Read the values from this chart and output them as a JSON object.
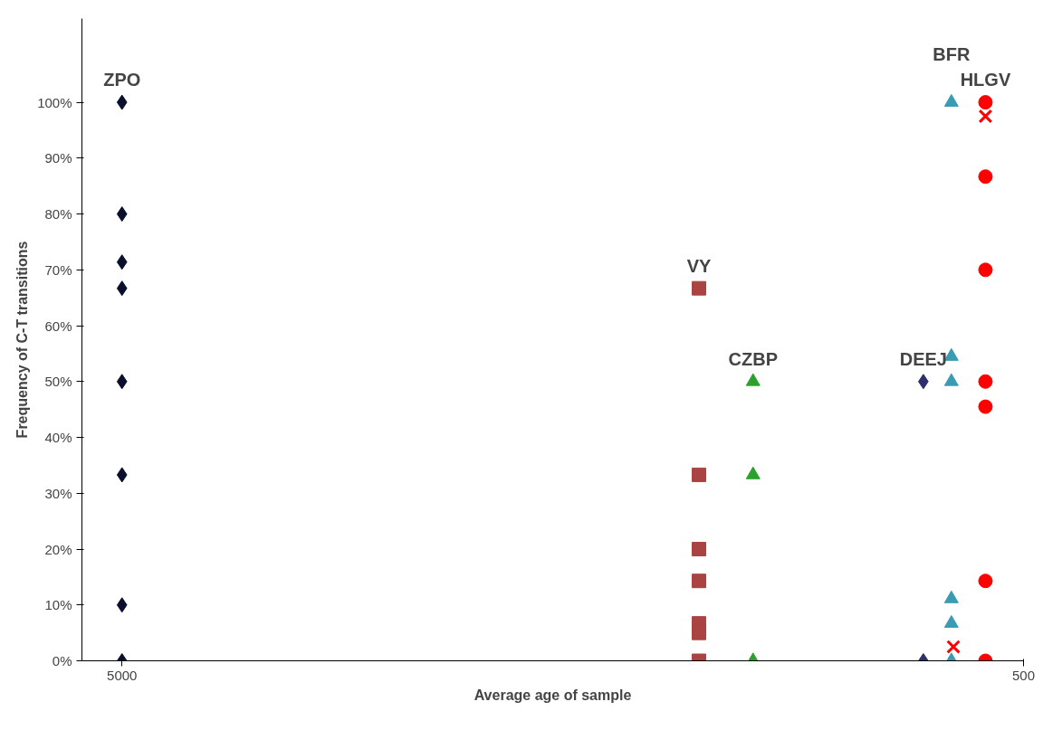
{
  "chart_data": {
    "type": "scatter",
    "xlabel": "Average age of sample",
    "ylabel": "Frequency of C-T transitions",
    "xlim": [
      5200,
      500
    ],
    "xticks": [
      5000,
      500
    ],
    "ylim": [
      0,
      115
    ],
    "yticks": [
      {
        "value": 0,
        "label": "0%"
      },
      {
        "value": 10,
        "label": "10%"
      },
      {
        "value": 20,
        "label": "20%"
      },
      {
        "value": 30,
        "label": "30%"
      },
      {
        "value": 40,
        "label": "40%"
      },
      {
        "value": 50,
        "label": "50%"
      },
      {
        "value": 60,
        "label": "60%"
      },
      {
        "value": 70,
        "label": "70%"
      },
      {
        "value": 80,
        "label": "80%"
      },
      {
        "value": 90,
        "label": "90%"
      },
      {
        "value": 100,
        "label": "100%"
      }
    ],
    "grid": false,
    "legend": false,
    "series": [
      {
        "name": "ZPO",
        "color": "#0a0f2e",
        "marker": "diamond",
        "x": [
          5000,
          5000,
          5000,
          5000,
          5000,
          5000,
          5000,
          5000
        ],
        "values": [
          100,
          80,
          71.4,
          66.7,
          50,
          33.3,
          10,
          0
        ]
      },
      {
        "name": "VY",
        "color": "#a94442",
        "marker": "square",
        "x": [
          2120,
          2120,
          2120,
          2120,
          2120,
          2120,
          2120
        ],
        "values": [
          66.7,
          33.3,
          20,
          14.3,
          6.7,
          5,
          0
        ]
      },
      {
        "name": "CZBP",
        "color": "#2ca02c",
        "marker": "triangle",
        "x": [
          1850,
          1850,
          1850
        ],
        "values": [
          50,
          33.3,
          0
        ]
      },
      {
        "name": "DEEJ",
        "color": "#2e2e6e",
        "marker": "diamond",
        "x": [
          1000,
          1000
        ],
        "values": [
          50,
          0
        ]
      },
      {
        "name": "BFR",
        "color": "#3a9bb5",
        "marker": "triangle",
        "x": [
          860,
          860,
          860,
          860,
          860,
          860
        ],
        "values": [
          100,
          54.5,
          50,
          11.1,
          6.7,
          0
        ]
      },
      {
        "name": "HLGV",
        "color": "#ff0000",
        "marker": "circle",
        "x": [
          690,
          690,
          690,
          690,
          690,
          690,
          690
        ],
        "values": [
          100,
          86.7,
          70,
          50,
          45.5,
          14.3,
          0
        ]
      },
      {
        "color": "#ff0000",
        "marker": "cross",
        "x": [
          690,
          850
        ],
        "values": [
          97.5,
          2.5
        ]
      }
    ]
  }
}
